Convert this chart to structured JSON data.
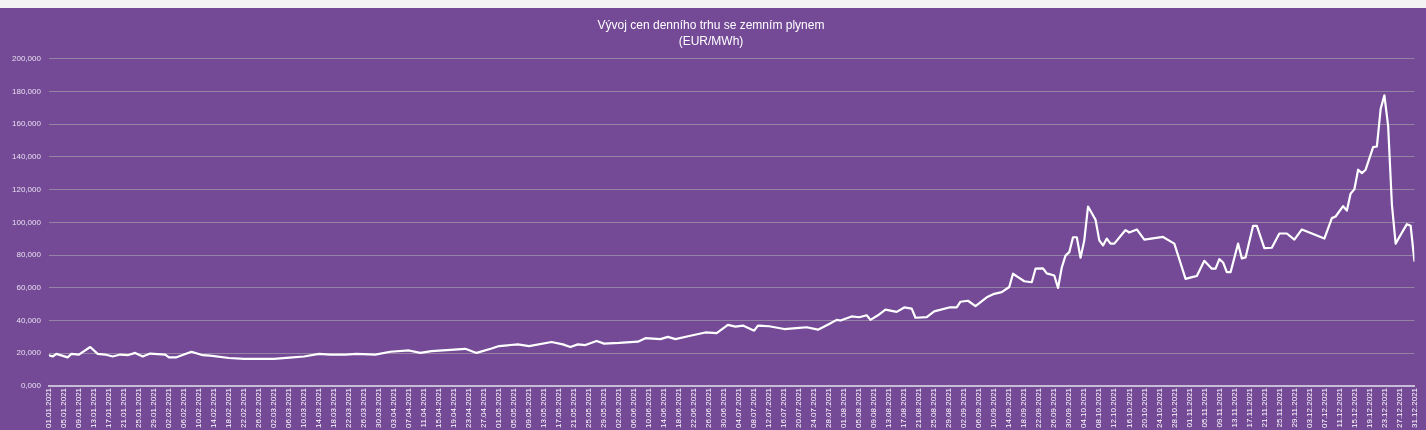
{
  "chart_data": {
    "type": "line",
    "title": "Vývoj cen denního trhu se zemním plynem",
    "subtitle": "(EUR/MWh)",
    "color": "#ffffff",
    "marker": "none",
    "line_style": "solid",
    "grid": "y",
    "legend": false,
    "x": [
      "2021-01-01",
      "2021-01-02",
      "2021-01-03",
      "2021-01-06",
      "2021-01-07",
      "2021-01-09",
      "2021-01-12",
      "2021-01-14",
      "2021-01-16",
      "2021-01-18",
      "2021-01-20",
      "2021-01-22",
      "2021-01-24",
      "2021-01-26",
      "2021-01-28",
      "2021-02-01",
      "2021-02-02",
      "2021-02-04",
      "2021-02-08",
      "2021-02-11",
      "2021-02-13",
      "2021-02-18",
      "2021-02-22",
      "2021-02-26",
      "2021-03-02",
      "2021-03-07",
      "2021-03-10",
      "2021-03-14",
      "2021-03-17",
      "2021-03-21",
      "2021-03-24",
      "2021-03-29",
      "2021-04-02",
      "2021-04-07",
      "2021-04-10",
      "2021-04-13",
      "2021-04-18",
      "2021-04-22",
      "2021-04-25",
      "2021-04-29",
      "2021-05-01",
      "2021-05-06",
      "2021-05-09",
      "2021-05-15",
      "2021-05-18",
      "2021-05-20",
      "2021-05-22",
      "2021-05-24",
      "2021-05-27",
      "2021-05-29",
      "2021-06-02",
      "2021-06-07",
      "2021-06-09",
      "2021-06-13",
      "2021-06-15",
      "2021-06-17",
      "2021-06-21",
      "2021-06-25",
      "2021-06-28",
      "2021-07-01",
      "2021-07-03",
      "2021-07-05",
      "2021-07-08",
      "2021-07-09",
      "2021-07-12",
      "2021-07-16",
      "2021-07-20",
      "2021-07-22",
      "2021-07-25",
      "2021-07-28",
      "2021-07-30",
      "2021-07-31",
      "2021-08-03",
      "2021-08-05",
      "2021-08-07",
      "2021-08-08",
      "2021-08-10",
      "2021-08-12",
      "2021-08-15",
      "2021-08-17",
      "2021-08-19",
      "2021-08-20",
      "2021-08-23",
      "2021-08-25",
      "2021-08-29",
      "2021-08-31",
      "2021-09-01",
      "2021-09-03",
      "2021-09-05",
      "2021-09-08",
      "2021-09-10",
      "2021-09-12",
      "2021-09-14",
      "2021-09-15",
      "2021-09-18",
      "2021-09-20",
      "2021-09-21",
      "2021-09-23",
      "2021-09-24",
      "2021-09-26",
      "2021-09-27",
      "2021-09-28",
      "2021-09-29",
      "2021-09-30",
      "2021-10-01",
      "2021-10-02",
      "2021-10-03",
      "2021-10-04",
      "2021-10-05",
      "2021-10-07",
      "2021-10-08",
      "2021-10-09",
      "2021-10-10",
      "2021-10-11",
      "2021-10-12",
      "2021-10-15",
      "2021-10-16",
      "2021-10-18",
      "2021-10-20",
      "2021-10-25",
      "2021-10-28",
      "2021-10-31",
      "2021-11-02",
      "2021-11-03",
      "2021-11-05",
      "2021-11-07",
      "2021-11-08",
      "2021-11-09",
      "2021-11-10",
      "2021-11-11",
      "2021-11-12",
      "2021-11-14",
      "2021-11-15",
      "2021-11-16",
      "2021-11-18",
      "2021-11-19",
      "2021-11-21",
      "2021-11-23",
      "2021-11-25",
      "2021-11-27",
      "2021-11-29",
      "2021-12-01",
      "2021-12-07",
      "2021-12-09",
      "2021-12-10",
      "2021-12-12",
      "2021-12-13",
      "2021-12-14",
      "2021-12-15",
      "2021-12-16",
      "2021-12-17",
      "2021-12-18",
      "2021-12-20",
      "2021-12-21",
      "2021-12-22",
      "2021-12-23",
      "2021-12-24",
      "2021-12-25",
      "2021-12-26",
      "2021-12-27",
      "2021-12-29",
      "2021-12-30",
      "2021-12-31"
    ],
    "values": [
      18800,
      18000,
      19600,
      17500,
      19600,
      19200,
      23800,
      19600,
      19200,
      18000,
      19200,
      18800,
      20200,
      18000,
      19800,
      19200,
      17500,
      17500,
      20900,
      18800,
      18600,
      17100,
      16500,
      16500,
      16500,
      17500,
      18000,
      19600,
      19200,
      19200,
      19600,
      19200,
      20900,
      21700,
      20200,
      21300,
      22100,
      22700,
      20200,
      22900,
      24400,
      25400,
      24400,
      26900,
      25400,
      23800,
      25400,
      25000,
      27500,
      25900,
      26300,
      27100,
      29200,
      28600,
      30000,
      28600,
      30700,
      32700,
      32300,
      37300,
      36300,
      36900,
      33800,
      36900,
      36500,
      34800,
      35500,
      35900,
      34400,
      37900,
      40400,
      40000,
      42500,
      42000,
      43200,
      40400,
      43200,
      46700,
      45300,
      48000,
      47300,
      41700,
      42100,
      45600,
      48000,
      48000,
      51500,
      52100,
      48800,
      54200,
      56300,
      57400,
      60500,
      68600,
      64000,
      63400,
      71700,
      71900,
      68800,
      67500,
      59900,
      72400,
      79700,
      81800,
      90900,
      90900,
      78400,
      89000,
      109700,
      101600,
      89000,
      85900,
      90100,
      87000,
      87000,
      95300,
      93800,
      95700,
      89500,
      91100,
      87000,
      65500,
      66700,
      67200,
      76500,
      71700,
      71700,
      77500,
      75500,
      69600,
      69600,
      87000,
      78000,
      78600,
      97900,
      97900,
      84300,
      84500,
      93200,
      93200,
      89500,
      95700,
      90100,
      102600,
      103600,
      109900,
      107200,
      117600,
      120300,
      132200,
      130100,
      132200,
      146000,
      146400,
      169300,
      177700,
      158900,
      110900,
      87000,
      91100,
      98900,
      97900,
      76500
    ],
    "xlim": [
      "2021-01-01",
      "2021-12-31"
    ],
    "xticks": [
      {
        "value": "2021-01-01",
        "label": "01.01.2021"
      },
      {
        "value": "2021-01-05",
        "label": "05.01.2021"
      },
      {
        "value": "2021-01-09",
        "label": "09.01.2021"
      },
      {
        "value": "2021-01-13",
        "label": "13.01.2021"
      },
      {
        "value": "2021-01-17",
        "label": "17.01.2021"
      },
      {
        "value": "2021-01-21",
        "label": "21.01.2021"
      },
      {
        "value": "2021-01-25",
        "label": "25.01.2021"
      },
      {
        "value": "2021-01-29",
        "label": "29.01.2021"
      },
      {
        "value": "2021-02-02",
        "label": "02.02.2021"
      },
      {
        "value": "2021-02-06",
        "label": "06.02.2021"
      },
      {
        "value": "2021-02-10",
        "label": "10.02.2021"
      },
      {
        "value": "2021-02-14",
        "label": "14.02.2021"
      },
      {
        "value": "2021-02-18",
        "label": "18.02.2021"
      },
      {
        "value": "2021-02-22",
        "label": "22.02.2021"
      },
      {
        "value": "2021-02-26",
        "label": "26.02.2021"
      },
      {
        "value": "2021-03-02",
        "label": "02.03.2021"
      },
      {
        "value": "2021-03-06",
        "label": "06.03.2021"
      },
      {
        "value": "2021-03-10",
        "label": "10.03.2021"
      },
      {
        "value": "2021-03-14",
        "label": "14.03.2021"
      },
      {
        "value": "2021-03-18",
        "label": "18.03.2021"
      },
      {
        "value": "2021-03-22",
        "label": "22.03.2021"
      },
      {
        "value": "2021-03-26",
        "label": "26.03.2021"
      },
      {
        "value": "2021-03-30",
        "label": "30.03.2021"
      },
      {
        "value": "2021-04-03",
        "label": "03.04.2021"
      },
      {
        "value": "2021-04-07",
        "label": "07.04.2021"
      },
      {
        "value": "2021-04-11",
        "label": "11.04.2021"
      },
      {
        "value": "2021-04-15",
        "label": "15.04.2021"
      },
      {
        "value": "2021-04-19",
        "label": "19.04.2021"
      },
      {
        "value": "2021-04-23",
        "label": "23.04.2021"
      },
      {
        "value": "2021-04-27",
        "label": "27.04.2021"
      },
      {
        "value": "2021-05-01",
        "label": "01.05.2021"
      },
      {
        "value": "2021-05-05",
        "label": "05.05.2021"
      },
      {
        "value": "2021-05-09",
        "label": "09.05.2021"
      },
      {
        "value": "2021-05-13",
        "label": "13.05.2021"
      },
      {
        "value": "2021-05-17",
        "label": "17.05.2021"
      },
      {
        "value": "2021-05-21",
        "label": "21.05.2021"
      },
      {
        "value": "2021-05-25",
        "label": "25.05.2021"
      },
      {
        "value": "2021-05-29",
        "label": "29.05.2021"
      },
      {
        "value": "2021-06-02",
        "label": "02.06.2021"
      },
      {
        "value": "2021-06-06",
        "label": "06.06.2021"
      },
      {
        "value": "2021-06-10",
        "label": "10.06.2021"
      },
      {
        "value": "2021-06-14",
        "label": "14.06.2021"
      },
      {
        "value": "2021-06-18",
        "label": "18.06.2021"
      },
      {
        "value": "2021-06-22",
        "label": "22.06.2021"
      },
      {
        "value": "2021-06-26",
        "label": "26.06.2021"
      },
      {
        "value": "2021-06-30",
        "label": "30.06.2021"
      },
      {
        "value": "2021-07-04",
        "label": "04.07.2021"
      },
      {
        "value": "2021-07-08",
        "label": "08.07.2021"
      },
      {
        "value": "2021-07-12",
        "label": "12.07.2021"
      },
      {
        "value": "2021-07-16",
        "label": "16.07.2021"
      },
      {
        "value": "2021-07-20",
        "label": "20.07.2021"
      },
      {
        "value": "2021-07-24",
        "label": "24.07.2021"
      },
      {
        "value": "2021-07-28",
        "label": "28.07.2021"
      },
      {
        "value": "2021-08-01",
        "label": "01.08.2021"
      },
      {
        "value": "2021-08-05",
        "label": "05.08.2021"
      },
      {
        "value": "2021-08-09",
        "label": "09.08.2021"
      },
      {
        "value": "2021-08-13",
        "label": "13.08.2021"
      },
      {
        "value": "2021-08-17",
        "label": "17.08.2021"
      },
      {
        "value": "2021-08-21",
        "label": "21.08.2021"
      },
      {
        "value": "2021-08-25",
        "label": "25.08.2021"
      },
      {
        "value": "2021-08-29",
        "label": "29.08.2021"
      },
      {
        "value": "2021-09-02",
        "label": "02.09.2021"
      },
      {
        "value": "2021-09-06",
        "label": "06.09.2021"
      },
      {
        "value": "2021-09-10",
        "label": "10.09.2021"
      },
      {
        "value": "2021-09-14",
        "label": "14.09.2021"
      },
      {
        "value": "2021-09-18",
        "label": "18.09.2021"
      },
      {
        "value": "2021-09-22",
        "label": "22.09.2021"
      },
      {
        "value": "2021-09-26",
        "label": "26.09.2021"
      },
      {
        "value": "2021-09-30",
        "label": "30.09.2021"
      },
      {
        "value": "2021-10-04",
        "label": "04.10.2021"
      },
      {
        "value": "2021-10-08",
        "label": "08.10.2021"
      },
      {
        "value": "2021-10-12",
        "label": "12.10.2021"
      },
      {
        "value": "2021-10-16",
        "label": "16.10.2021"
      },
      {
        "value": "2021-10-20",
        "label": "20.10.2021"
      },
      {
        "value": "2021-10-24",
        "label": "24.10.2021"
      },
      {
        "value": "2021-10-28",
        "label": "28.10.2021"
      },
      {
        "value": "2021-11-01",
        "label": "01.11.2021"
      },
      {
        "value": "2021-11-05",
        "label": "05.11.2021"
      },
      {
        "value": "2021-11-09",
        "label": "09.11.2021"
      },
      {
        "value": "2021-11-13",
        "label": "13.11.2021"
      },
      {
        "value": "2021-11-17",
        "label": "17.11.2021"
      },
      {
        "value": "2021-11-21",
        "label": "21.11.2021"
      },
      {
        "value": "2021-11-25",
        "label": "25.11.2021"
      },
      {
        "value": "2021-11-29",
        "label": "29.11.2021"
      },
      {
        "value": "2021-12-03",
        "label": "03.12.2021"
      },
      {
        "value": "2021-12-07",
        "label": "07.12.2021"
      },
      {
        "value": "2021-12-11",
        "label": "11.12.2021"
      },
      {
        "value": "2021-12-15",
        "label": "15.12.2021"
      },
      {
        "value": "2021-12-19",
        "label": "19.12.2021"
      },
      {
        "value": "2021-12-23",
        "label": "23.12.2021"
      },
      {
        "value": "2021-12-27",
        "label": "27.12.2021"
      },
      {
        "value": "2021-12-31",
        "label": "31.12.2021"
      }
    ],
    "ylim": [
      0,
      200000
    ],
    "yticks": [
      {
        "value": 0,
        "label": "0,000"
      },
      {
        "value": 20000,
        "label": "20,000"
      },
      {
        "value": 40000,
        "label": "40,000"
      },
      {
        "value": 60000,
        "label": "60,000"
      },
      {
        "value": 80000,
        "label": "80,000"
      },
      {
        "value": 100000,
        "label": "100,000"
      },
      {
        "value": 120000,
        "label": "120,000"
      },
      {
        "value": 140000,
        "label": "140,000"
      },
      {
        "value": 160000,
        "label": "160,000"
      },
      {
        "value": 180000,
        "label": "180,000"
      },
      {
        "value": 200000,
        "label": "200,000"
      }
    ]
  }
}
